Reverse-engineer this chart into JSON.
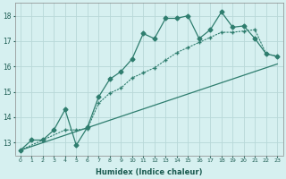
{
  "xlabel": "Humidex (Indice chaleur)",
  "background_color": "#d6f0f0",
  "grid_color": "#b8d8d8",
  "line_color": "#2e7d6e",
  "xlim": [
    -0.5,
    23.5
  ],
  "ylim": [
    12.5,
    18.5
  ],
  "xticks": [
    0,
    1,
    2,
    3,
    4,
    5,
    6,
    7,
    8,
    9,
    10,
    11,
    12,
    13,
    14,
    15,
    16,
    17,
    18,
    19,
    20,
    21,
    22,
    23
  ],
  "yticks": [
    13,
    14,
    15,
    16,
    17,
    18
  ],
  "line1_x": [
    0,
    1,
    2,
    3,
    4,
    5,
    6,
    7,
    8,
    9,
    10,
    11,
    12,
    13,
    14,
    15,
    16,
    17,
    18,
    19,
    20,
    21,
    22,
    23
  ],
  "line1_y": [
    12.7,
    13.1,
    13.1,
    13.5,
    14.3,
    12.9,
    13.6,
    14.8,
    15.5,
    15.8,
    16.3,
    17.3,
    17.1,
    17.9,
    17.9,
    18.0,
    17.1,
    17.45,
    18.15,
    17.55,
    17.6,
    17.1,
    16.5,
    16.4
  ],
  "line2_x": [
    0,
    4,
    5,
    6,
    7,
    8,
    9,
    10,
    11,
    12,
    13,
    14,
    15,
    16,
    17,
    18,
    19,
    20,
    21,
    22,
    23
  ],
  "line2_y": [
    12.7,
    13.5,
    13.5,
    13.55,
    14.55,
    14.95,
    15.15,
    15.55,
    15.75,
    15.95,
    16.25,
    16.55,
    16.75,
    16.95,
    17.15,
    17.35,
    17.35,
    17.4,
    17.45,
    16.5,
    16.4
  ],
  "line3_x": [
    0,
    23
  ],
  "line3_y": [
    12.7,
    16.1
  ]
}
